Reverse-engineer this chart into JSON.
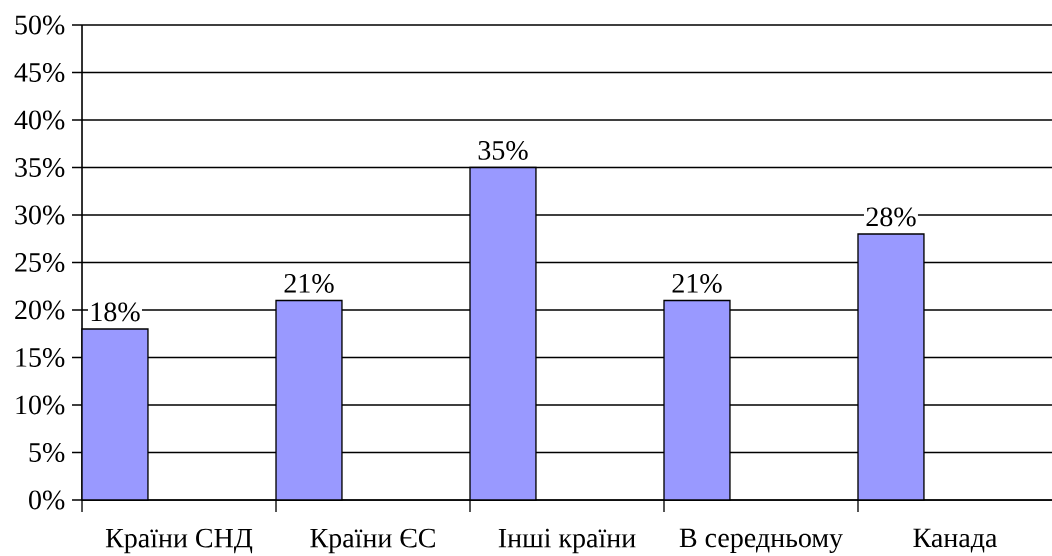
{
  "chart_data": {
    "type": "bar",
    "categories": [
      "Країни СНД",
      "Країни ЄС",
      "Інші країни",
      "В середньому",
      "Канада"
    ],
    "values": [
      18,
      21,
      35,
      21,
      28
    ],
    "value_labels": [
      "18%",
      "21%",
      "35%",
      "21%",
      "28%"
    ],
    "color": "#9999ff",
    "ylim": [
      0,
      50
    ],
    "yticks": [
      {
        "value": 0,
        "label": "0%"
      },
      {
        "value": 5,
        "label": "5%"
      },
      {
        "value": 10,
        "label": "10%"
      },
      {
        "value": 15,
        "label": "15%"
      },
      {
        "value": 20,
        "label": "20%"
      },
      {
        "value": 25,
        "label": "25%"
      },
      {
        "value": 30,
        "label": "30%"
      },
      {
        "value": 35,
        "label": "35%"
      },
      {
        "value": 40,
        "label": "40%"
      },
      {
        "value": 45,
        "label": "45%"
      },
      {
        "value": 50,
        "label": "50%"
      }
    ],
    "grid": "y"
  }
}
